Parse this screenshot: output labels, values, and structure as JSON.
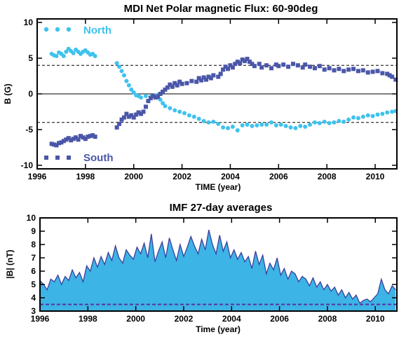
{
  "chart_data": [
    {
      "type": "scatter",
      "title": "MDI Net Polar magnetic Flux: 60-90deg",
      "xlabel": "TIME (year)",
      "ylabel": "B (G)",
      "xlim": [
        1996,
        2010.9
      ],
      "ylim": [
        -10.5,
        10.5
      ],
      "xticks": [
        1996,
        1998,
        2000,
        2002,
        2004,
        2006,
        2008,
        2010
      ],
      "yticks": [
        -10,
        -5,
        0,
        5,
        10
      ],
      "reference_lines": [
        {
          "y": 4,
          "style": "dashed"
        },
        {
          "y": -4,
          "style": "dashed"
        },
        {
          "y": 0,
          "style": "solid"
        }
      ],
      "legend": "inside-left",
      "series": [
        {
          "name": "North",
          "marker": "circle",
          "color": "#3fc2ee",
          "points": [
            [
              1996.6,
              5.6
            ],
            [
              1996.7,
              5.4
            ],
            [
              1996.8,
              5.3
            ],
            [
              1996.9,
              5.8
            ],
            [
              1997.0,
              5.6
            ],
            [
              1997.1,
              5.3
            ],
            [
              1997.2,
              5.9
            ],
            [
              1997.3,
              6.3
            ],
            [
              1997.4,
              6.0
            ],
            [
              1997.5,
              5.7
            ],
            [
              1997.6,
              6.2
            ],
            [
              1997.7,
              5.9
            ],
            [
              1997.8,
              5.6
            ],
            [
              1997.9,
              5.9
            ],
            [
              1998.0,
              6.1
            ],
            [
              1998.1,
              5.8
            ],
            [
              1998.2,
              5.5
            ],
            [
              1998.3,
              5.6
            ],
            [
              1998.4,
              5.3
            ],
            [
              1999.3,
              4.3
            ],
            [
              1999.4,
              3.8
            ],
            [
              1999.5,
              3.2
            ],
            [
              1999.6,
              2.6
            ],
            [
              1999.7,
              1.8
            ],
            [
              1999.8,
              1.2
            ],
            [
              1999.9,
              0.6
            ],
            [
              2000.0,
              0.2
            ],
            [
              2000.1,
              -0.2
            ],
            [
              2000.2,
              -0.3
            ],
            [
              2000.3,
              -0.5
            ],
            [
              2000.5,
              -0.3
            ],
            [
              2000.7,
              -0.4
            ],
            [
              2000.9,
              -0.2
            ],
            [
              2001.0,
              -0.5
            ],
            [
              2001.1,
              -0.8
            ],
            [
              2001.2,
              -1.3
            ],
            [
              2001.3,
              -1.7
            ],
            [
              2001.5,
              -2.0
            ],
            [
              2001.7,
              -2.3
            ],
            [
              2001.9,
              -2.5
            ],
            [
              2002.1,
              -2.7
            ],
            [
              2002.3,
              -3.0
            ],
            [
              2002.5,
              -3.2
            ],
            [
              2002.7,
              -3.5
            ],
            [
              2002.9,
              -3.8
            ],
            [
              2003.1,
              -4.0
            ],
            [
              2003.3,
              -3.9
            ],
            [
              2003.5,
              -4.2
            ],
            [
              2003.7,
              -4.7
            ],
            [
              2003.9,
              -4.8
            ],
            [
              2004.1,
              -4.6
            ],
            [
              2004.3,
              -5.1
            ],
            [
              2004.5,
              -4.4
            ],
            [
              2004.7,
              -4.3
            ],
            [
              2004.9,
              -4.5
            ],
            [
              2005.1,
              -4.4
            ],
            [
              2005.3,
              -4.3
            ],
            [
              2005.5,
              -4.3
            ],
            [
              2005.7,
              -4.0
            ],
            [
              2005.9,
              -4.4
            ],
            [
              2006.1,
              -4.3
            ],
            [
              2006.3,
              -4.5
            ],
            [
              2006.5,
              -4.7
            ],
            [
              2006.7,
              -4.8
            ],
            [
              2006.9,
              -4.5
            ],
            [
              2007.1,
              -4.6
            ],
            [
              2007.3,
              -4.3
            ],
            [
              2007.5,
              -4.0
            ],
            [
              2007.7,
              -4.1
            ],
            [
              2007.9,
              -3.9
            ],
            [
              2008.1,
              -4.1
            ],
            [
              2008.3,
              -4.0
            ],
            [
              2008.5,
              -3.8
            ],
            [
              2008.7,
              -3.9
            ],
            [
              2008.9,
              -3.6
            ],
            [
              2009.1,
              -3.3
            ],
            [
              2009.3,
              -3.4
            ],
            [
              2009.5,
              -3.2
            ],
            [
              2009.7,
              -3.0
            ],
            [
              2009.9,
              -3.1
            ],
            [
              2010.1,
              -2.9
            ],
            [
              2010.3,
              -2.8
            ],
            [
              2010.5,
              -2.6
            ],
            [
              2010.7,
              -2.5
            ],
            [
              2010.85,
              -2.4
            ]
          ]
        },
        {
          "name": "South",
          "marker": "square",
          "color": "#4a56a8",
          "points": [
            [
              1996.6,
              -7.0
            ],
            [
              1996.7,
              -7.1
            ],
            [
              1996.8,
              -7.2
            ],
            [
              1996.9,
              -6.9
            ],
            [
              1997.0,
              -6.8
            ],
            [
              1997.1,
              -6.6
            ],
            [
              1997.2,
              -6.4
            ],
            [
              1997.3,
              -6.2
            ],
            [
              1997.4,
              -6.5
            ],
            [
              1997.5,
              -6.3
            ],
            [
              1997.6,
              -6.1
            ],
            [
              1997.7,
              -6.4
            ],
            [
              1997.8,
              -5.9
            ],
            [
              1997.9,
              -6.1
            ],
            [
              1998.0,
              -6.3
            ],
            [
              1998.1,
              -6.0
            ],
            [
              1998.2,
              -5.9
            ],
            [
              1998.3,
              -5.8
            ],
            [
              1998.4,
              -6.0
            ],
            [
              1999.3,
              -4.7
            ],
            [
              1999.4,
              -4.2
            ],
            [
              1999.5,
              -3.6
            ],
            [
              1999.6,
              -3.3
            ],
            [
              1999.7,
              -2.8
            ],
            [
              1999.8,
              -3.2
            ],
            [
              1999.9,
              -3.0
            ],
            [
              2000.0,
              -3.3
            ],
            [
              2000.1,
              -2.9
            ],
            [
              2000.2,
              -2.6
            ],
            [
              2000.3,
              -2.8
            ],
            [
              2000.4,
              -2.5
            ],
            [
              2000.5,
              -1.8
            ],
            [
              2000.6,
              -1.0
            ],
            [
              2000.7,
              -0.6
            ],
            [
              2000.8,
              -0.3
            ],
            [
              2000.9,
              -0.5
            ],
            [
              2001.0,
              -0.4
            ],
            [
              2001.1,
              0.0
            ],
            [
              2001.2,
              0.3
            ],
            [
              2001.3,
              0.6
            ],
            [
              2001.4,
              0.9
            ],
            [
              2001.5,
              1.3
            ],
            [
              2001.6,
              1.0
            ],
            [
              2001.7,
              1.5
            ],
            [
              2001.8,
              1.2
            ],
            [
              2001.9,
              1.7
            ],
            [
              2002.0,
              1.4
            ],
            [
              2002.2,
              1.5
            ],
            [
              2002.4,
              1.8
            ],
            [
              2002.6,
              1.7
            ],
            [
              2002.7,
              2.2
            ],
            [
              2002.8,
              1.9
            ],
            [
              2002.9,
              2.3
            ],
            [
              2003.0,
              2.0
            ],
            [
              2003.1,
              2.4
            ],
            [
              2003.2,
              2.2
            ],
            [
              2003.3,
              2.6
            ],
            [
              2003.5,
              2.4
            ],
            [
              2003.6,
              2.8
            ],
            [
              2003.7,
              3.4
            ],
            [
              2003.8,
              3.8
            ],
            [
              2003.9,
              3.5
            ],
            [
              2004.0,
              4.0
            ],
            [
              2004.1,
              3.7
            ],
            [
              2004.2,
              4.2
            ],
            [
              2004.3,
              4.5
            ],
            [
              2004.4,
              4.3
            ],
            [
              2004.5,
              4.8
            ],
            [
              2004.6,
              4.6
            ],
            [
              2004.7,
              4.9
            ],
            [
              2004.8,
              4.5
            ],
            [
              2004.9,
              4.2
            ],
            [
              2005.0,
              3.9
            ],
            [
              2005.2,
              4.2
            ],
            [
              2005.3,
              3.7
            ],
            [
              2005.5,
              4.0
            ],
            [
              2005.7,
              3.6
            ],
            [
              2005.9,
              4.1
            ],
            [
              2006.0,
              3.9
            ],
            [
              2006.2,
              4.1
            ],
            [
              2006.4,
              3.8
            ],
            [
              2006.6,
              4.2
            ],
            [
              2006.8,
              4.0
            ],
            [
              2007.0,
              3.7
            ],
            [
              2007.1,
              4.1
            ],
            [
              2007.3,
              3.8
            ],
            [
              2007.5,
              3.6
            ],
            [
              2007.7,
              3.9
            ],
            [
              2007.9,
              3.4
            ],
            [
              2008.1,
              3.6
            ],
            [
              2008.3,
              3.3
            ],
            [
              2008.5,
              3.5
            ],
            [
              2008.7,
              3.2
            ],
            [
              2008.9,
              3.4
            ],
            [
              2009.1,
              3.5
            ],
            [
              2009.3,
              3.2
            ],
            [
              2009.5,
              3.3
            ],
            [
              2009.7,
              3.0
            ],
            [
              2009.9,
              3.1
            ],
            [
              2010.1,
              3.2
            ],
            [
              2010.3,
              2.9
            ],
            [
              2010.5,
              2.8
            ],
            [
              2010.6,
              2.6
            ],
            [
              2010.7,
              2.4
            ],
            [
              2010.85,
              2.0
            ]
          ]
        }
      ]
    },
    {
      "type": "area",
      "title": "IMF 27-day averages",
      "xlabel": "Time (year)",
      "ylabel": "|B| (nT)",
      "xlim": [
        1996,
        2010.9
      ],
      "ylim": [
        3,
        10
      ],
      "xticks": [
        1996,
        1998,
        2000,
        2002,
        2004,
        2006,
        2008,
        2010
      ],
      "yticks": [
        3,
        4,
        5,
        6,
        7,
        8,
        9,
        10
      ],
      "fill_color": "#3cb4e6",
      "line_color": "#3a3f9c",
      "reference_lines": [
        {
          "y": 3.5,
          "style": "dashed",
          "color": "#5a2fa0"
        }
      ],
      "series": [
        {
          "x": [
            1996.0,
            1996.15,
            1996.3,
            1996.45,
            1996.6,
            1996.75,
            1996.9,
            1997.05,
            1997.2,
            1997.35,
            1997.5,
            1997.65,
            1997.8,
            1997.95,
            1998.1,
            1998.25,
            1998.4,
            1998.55,
            1998.7,
            1998.85,
            1999.0,
            1999.15,
            1999.3,
            1999.45,
            1999.6,
            1999.75,
            1999.9,
            2000.05,
            2000.2,
            2000.35,
            2000.5,
            2000.65,
            2000.8,
            2000.95,
            2001.1,
            2001.25,
            2001.4,
            2001.55,
            2001.7,
            2001.85,
            2002.0,
            2002.15,
            2002.3,
            2002.45,
            2002.6,
            2002.75,
            2002.9,
            2003.05,
            2003.2,
            2003.35,
            2003.5,
            2003.65,
            2003.8,
            2003.95,
            2004.1,
            2004.25,
            2004.4,
            2004.55,
            2004.7,
            2004.85,
            2005.0,
            2005.15,
            2005.3,
            2005.45,
            2005.6,
            2005.75,
            2005.9,
            2006.05,
            2006.2,
            2006.35,
            2006.5,
            2006.65,
            2006.8,
            2006.95,
            2007.1,
            2007.25,
            2007.4,
            2007.55,
            2007.7,
            2007.85,
            2008.0,
            2008.15,
            2008.3,
            2008.45,
            2008.6,
            2008.75,
            2008.9,
            2009.05,
            2009.2,
            2009.35,
            2009.5,
            2009.65,
            2009.8,
            2009.95,
            2010.1,
            2010.25,
            2010.4,
            2010.55,
            2010.7,
            2010.85
          ],
          "values": [
            5.3,
            5.0,
            4.6,
            5.4,
            5.2,
            5.7,
            5.0,
            5.6,
            5.3,
            6.1,
            5.5,
            5.9,
            5.2,
            6.4,
            6.0,
            7.0,
            6.3,
            7.1,
            6.5,
            7.4,
            6.8,
            7.9,
            7.0,
            6.6,
            7.6,
            7.2,
            6.9,
            7.8,
            7.3,
            8.1,
            7.0,
            8.8,
            6.7,
            7.5,
            8.2,
            7.0,
            8.5,
            7.6,
            6.8,
            8.0,
            7.1,
            7.8,
            8.6,
            7.9,
            7.3,
            8.4,
            7.6,
            9.1,
            8.0,
            7.3,
            8.7,
            7.5,
            8.2,
            7.0,
            7.6,
            6.9,
            7.4,
            6.7,
            7.1,
            6.2,
            7.5,
            6.5,
            7.2,
            5.8,
            6.6,
            6.1,
            7.0,
            5.7,
            6.2,
            5.4,
            6.0,
            5.8,
            5.2,
            5.6,
            5.4,
            4.9,
            5.5,
            4.8,
            5.2,
            4.6,
            5.0,
            4.5,
            4.8,
            4.2,
            4.6,
            4.0,
            4.4,
            3.9,
            4.2,
            3.6,
            3.8,
            3.9,
            3.7,
            4.0,
            4.3,
            5.4,
            4.6,
            4.3,
            4.9,
            4.6
          ]
        }
      ]
    }
  ]
}
